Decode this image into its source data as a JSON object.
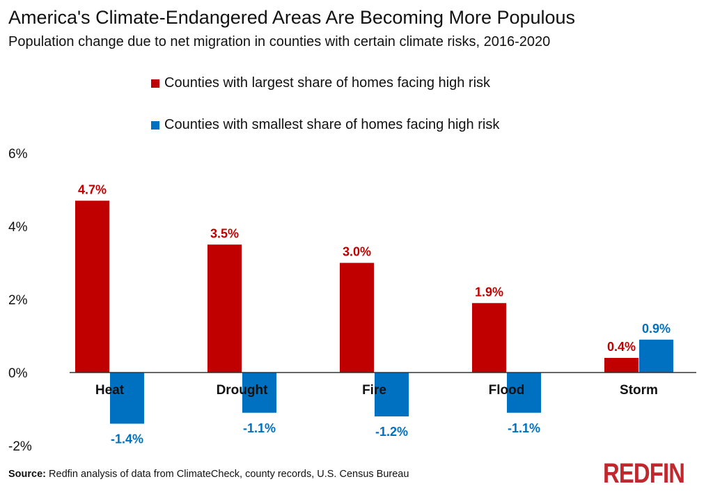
{
  "header": {
    "title": "America's Climate-Endangered Areas Are Becoming More Populous",
    "subtitle": "Population change due to net migration in counties with certain climate risks, 2016-2020"
  },
  "footer": {
    "source_label": "Source:",
    "source_text": " Redfin analysis of data from ClimateCheck, county records, U.S. Census Bureau",
    "logo": "REDFIN"
  },
  "chart_data": {
    "type": "bar",
    "title": "America's Climate-Endangered Areas Are Becoming More Populous",
    "subtitle": "Population change due to net migration in counties with certain climate risks, 2016-2020",
    "categories": [
      "Heat",
      "Drought",
      "Fire",
      "Flood",
      "Storm"
    ],
    "series": [
      {
        "name": "Counties with largest share of homes facing high risk",
        "values": [
          4.7,
          3.5,
          3.0,
          1.9,
          0.4
        ],
        "labels": [
          "4.7%",
          "3.5%",
          "3.0%",
          "1.9%",
          "0.4%"
        ],
        "color": "#C00000"
      },
      {
        "name": "Counties with smallest share of homes facing high risk",
        "values": [
          -1.4,
          -1.1,
          -1.2,
          -1.1,
          0.9
        ],
        "labels": [
          "-1.4%",
          "-1.1%",
          "-1.2%",
          "-1.1%",
          "0.9%"
        ],
        "color": "#0070C0"
      }
    ],
    "ylim": [
      -2,
      6
    ],
    "yticks": [
      6,
      4,
      2,
      0,
      -2
    ],
    "ytick_labels": [
      "6%",
      "4%",
      "2%",
      "0%",
      "-2%"
    ],
    "xlabel": "",
    "ylabel": "",
    "grid": false,
    "legend": "top"
  }
}
